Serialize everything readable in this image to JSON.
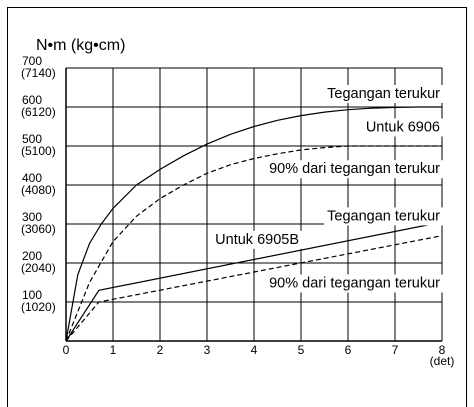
{
  "chart_data": {
    "type": "line",
    "ylabel": "N•m  (kg•cm)",
    "xunit": "(det)",
    "xlim": [
      0,
      8
    ],
    "ylim": [
      0,
      700
    ],
    "x_ticks": [
      "0",
      "1",
      "2",
      "3",
      "4",
      "5",
      "6",
      "7",
      "8"
    ],
    "y_ticks": [
      {
        "value": 100,
        "label": "100",
        "sub": "(1020)"
      },
      {
        "value": 200,
        "label": "200",
        "sub": "(2040)"
      },
      {
        "value": 300,
        "label": "300",
        "sub": "(3060)"
      },
      {
        "value": 400,
        "label": "400",
        "sub": "(4080)"
      },
      {
        "value": 500,
        "label": "500",
        "sub": "(5100)"
      },
      {
        "value": 600,
        "label": "600",
        "sub": "(6120)"
      },
      {
        "value": 700,
        "label": "700",
        "sub": "(7140)"
      }
    ],
    "grid": true,
    "series": [
      {
        "style": "solid",
        "x": [
          0,
          0.25,
          0.5,
          0.75,
          1,
          1.5,
          2,
          2.5,
          3,
          3.5,
          4,
          4.5,
          5,
          5.5,
          6,
          6.5,
          7,
          7.5,
          8
        ],
        "y": [
          0,
          170,
          250,
          300,
          340,
          400,
          440,
          475,
          505,
          530,
          550,
          566,
          578,
          587,
          593,
          597,
          599,
          600,
          600
        ]
      },
      {
        "style": "dashed",
        "x": [
          0,
          0.5,
          1,
          1.5,
          2,
          2.5,
          3,
          3.5,
          4,
          4.5,
          5,
          5.5,
          6,
          6.5,
          7,
          7.5,
          8
        ],
        "y": [
          0,
          150,
          255,
          320,
          365,
          400,
          430,
          452,
          468,
          480,
          490,
          496,
          500,
          500,
          500,
          500,
          500
        ]
      },
      {
        "style": "solid",
        "x": [
          0,
          0.7,
          8
        ],
        "y": [
          0,
          130,
          305
        ]
      },
      {
        "style": "dashed",
        "x": [
          0,
          0.7,
          8
        ],
        "y": [
          0,
          100,
          270
        ]
      }
    ],
    "annotations": [
      {
        "text": "Tegangan terukur",
        "x": 8,
        "y": 636,
        "anchor": "end"
      },
      {
        "text": "Untuk 6906",
        "x": 8,
        "y": 550,
        "anchor": "end"
      },
      {
        "text": "90% dari tegangan terukur",
        "x": 8,
        "y": 443,
        "anchor": "end"
      },
      {
        "text": "Tegangan terukur",
        "x": 8,
        "y": 322,
        "anchor": "end"
      },
      {
        "text": "Untuk 6905B",
        "x": 5,
        "y": 262,
        "anchor": "end"
      },
      {
        "text": "90% dari tegangan terukur",
        "x": 8,
        "y": 150,
        "anchor": "end"
      }
    ]
  }
}
